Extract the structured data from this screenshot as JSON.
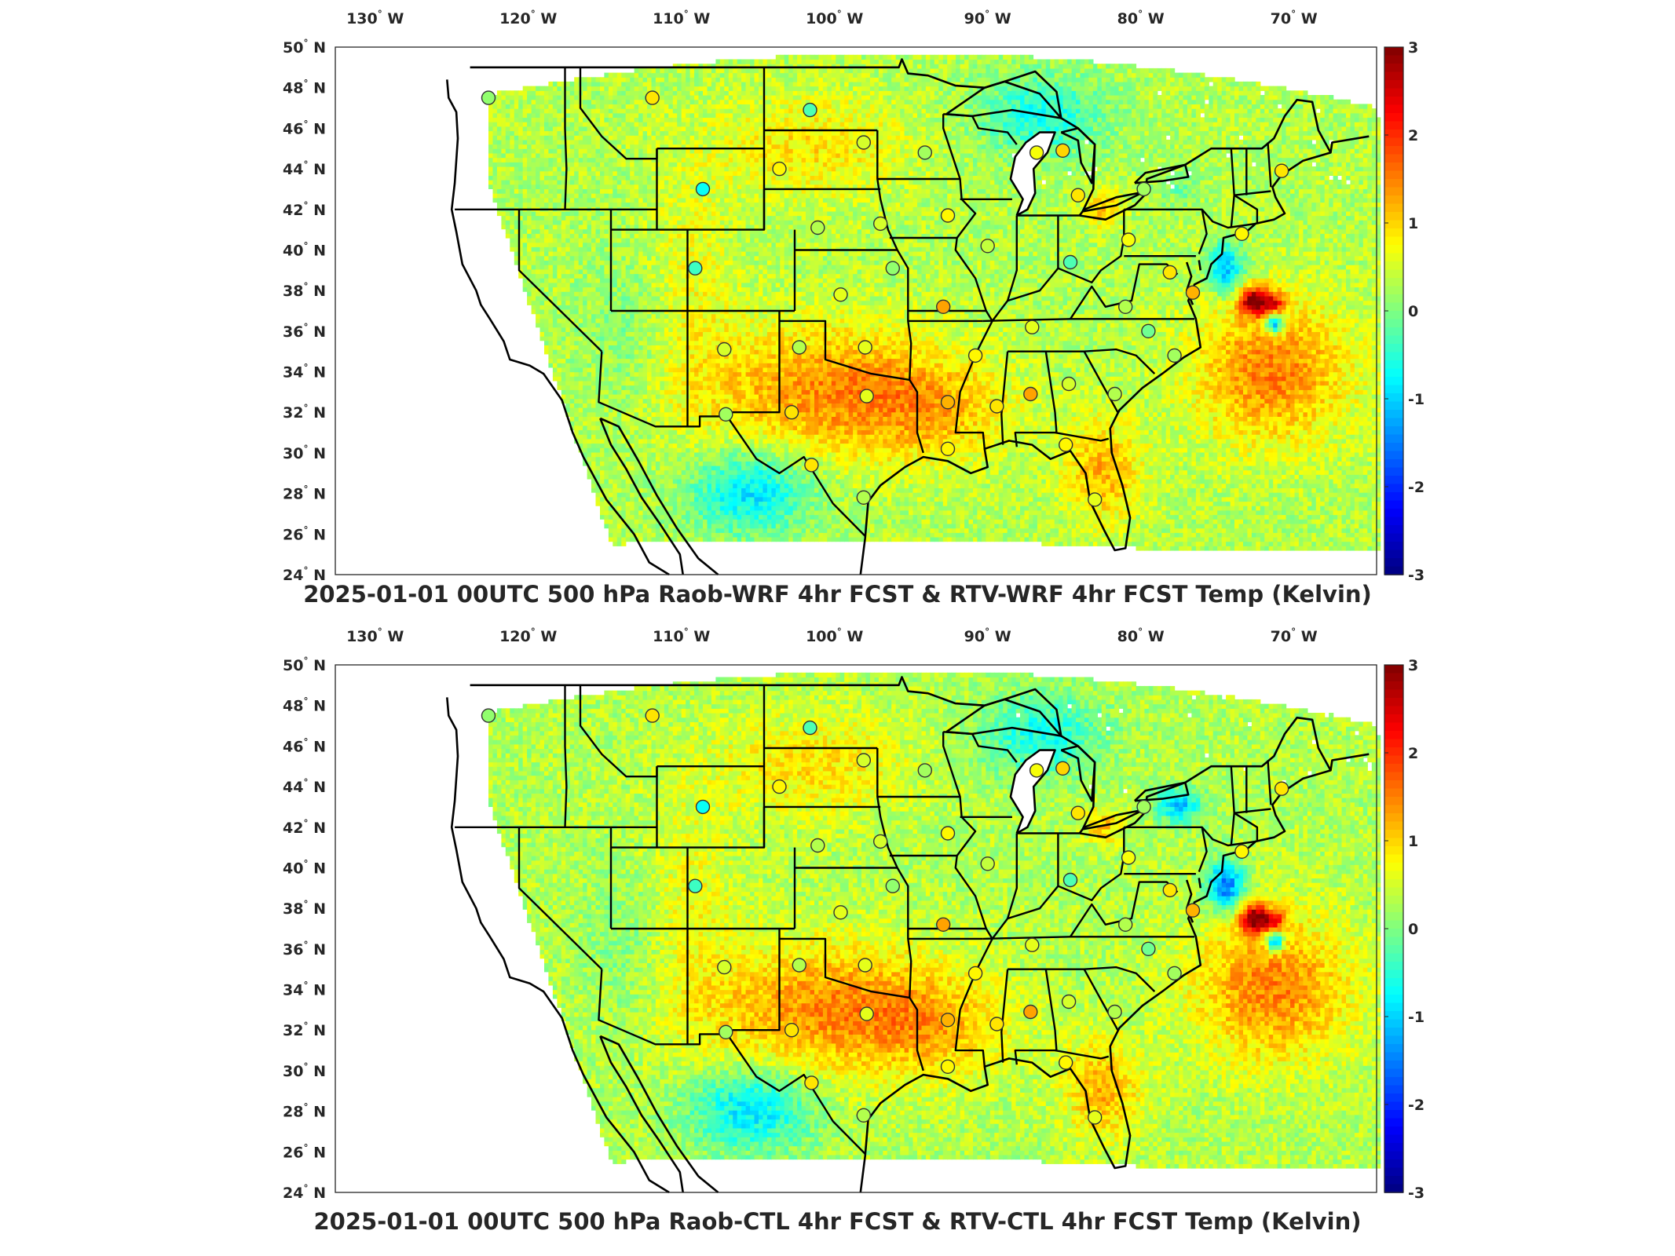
{
  "map": {
    "projection": "Lambert conformal conic",
    "lon_range": [
      -132,
      -64
    ],
    "lat_range": [
      24,
      50
    ],
    "lon_ticks": [
      "130",
      "120",
      "110",
      "100",
      "90",
      "80",
      "70"
    ],
    "lon_hemisphere": "W",
    "lat_ticks": [
      "24",
      "26",
      "28",
      "30",
      "32",
      "34",
      "36",
      "38",
      "40",
      "42",
      "44",
      "46",
      "48",
      "50"
    ],
    "lat_hemisphere": "N",
    "degree_symbol": "°"
  },
  "colorbar": {
    "colormap": "jet",
    "range": [
      -3,
      3
    ],
    "ticks": [
      "3",
      "2",
      "1",
      "0",
      "-1",
      "-2",
      "-3"
    ]
  },
  "panels": [
    {
      "title": "2025-01-01 00UTC 500 hPa Raob-WRF 4hr FCST & RTV-WRF 4hr FCST Temp (Kelvin)"
    },
    {
      "title": "2025-01-01 00UTC 500 hPa Raob-CTL 4hr FCST & RTV-CTL 4hr FCST Temp (Kelvin)"
    }
  ],
  "stations": [
    {
      "lon": -122.0,
      "lat": 47.5,
      "v1": 0.1,
      "v2": 0.1
    },
    {
      "lon": -111.3,
      "lat": 47.5,
      "v1": 0.9,
      "v2": 0.9
    },
    {
      "lon": -101.0,
      "lat": 46.9,
      "v1": -0.3,
      "v2": -0.3
    },
    {
      "lon": -97.5,
      "lat": 45.3,
      "v1": 0.5,
      "v2": 0.5
    },
    {
      "lon": -93.5,
      "lat": 44.8,
      "v1": 0.2,
      "v2": 0.2
    },
    {
      "lon": -103.0,
      "lat": 44.0,
      "v1": 0.8,
      "v2": 0.8
    },
    {
      "lon": -108.0,
      "lat": 43.0,
      "v1": -0.7,
      "v2": -0.7
    },
    {
      "lon": -100.5,
      "lat": 41.1,
      "v1": 0.3,
      "v2": 0.3
    },
    {
      "lon": -96.4,
      "lat": 41.3,
      "v1": 0.5,
      "v2": 0.5
    },
    {
      "lon": -108.5,
      "lat": 39.1,
      "v1": -0.4,
      "v2": -0.4
    },
    {
      "lon": -99.0,
      "lat": 37.8,
      "v1": 0.6,
      "v2": 0.6
    },
    {
      "lon": -95.6,
      "lat": 39.1,
      "v1": 0.1,
      "v2": 0.1
    },
    {
      "lon": -92.0,
      "lat": 41.7,
      "v1": 0.8,
      "v2": 0.8
    },
    {
      "lon": -89.4,
      "lat": 40.2,
      "v1": 0.4,
      "v2": 0.4
    },
    {
      "lon": -86.2,
      "lat": 44.8,
      "v1": 0.7,
      "v2": 0.7
    },
    {
      "lon": -84.5,
      "lat": 44.9,
      "v1": 1.0,
      "v2": 1.0
    },
    {
      "lon": -83.5,
      "lat": 42.7,
      "v1": 0.9,
      "v2": 0.9
    },
    {
      "lon": -79.2,
      "lat": 43.0,
      "v1": 0.2,
      "v2": 0.2
    },
    {
      "lon": -84.0,
      "lat": 39.4,
      "v1": -0.3,
      "v2": -0.3
    },
    {
      "lon": -80.2,
      "lat": 40.5,
      "v1": 0.7,
      "v2": 0.7
    },
    {
      "lon": -77.5,
      "lat": 38.9,
      "v1": 0.9,
      "v2": 0.9
    },
    {
      "lon": -76.0,
      "lat": 37.9,
      "v1": 1.2,
      "v2": 1.2
    },
    {
      "lon": -72.8,
      "lat": 40.8,
      "v1": 0.8,
      "v2": 0.8
    },
    {
      "lon": -70.2,
      "lat": 43.9,
      "v1": 0.9,
      "v2": 0.9
    },
    {
      "lon": -106.6,
      "lat": 35.1,
      "v1": 0.5,
      "v2": 0.5
    },
    {
      "lon": -101.7,
      "lat": 35.2,
      "v1": 0.3,
      "v2": 0.3
    },
    {
      "lon": -97.4,
      "lat": 35.2,
      "v1": 0.6,
      "v2": 0.6
    },
    {
      "lon": -92.3,
      "lat": 37.2,
      "v1": 1.3,
      "v2": 1.3
    },
    {
      "lon": -90.2,
      "lat": 34.8,
      "v1": 0.8,
      "v2": 0.8
    },
    {
      "lon": -86.5,
      "lat": 36.2,
      "v1": 0.6,
      "v2": 0.6
    },
    {
      "lon": -80.4,
      "lat": 37.2,
      "v1": 0.3,
      "v2": 0.3
    },
    {
      "lon": -78.9,
      "lat": 36.0,
      "v1": -0.1,
      "v2": -0.1
    },
    {
      "lon": -77.2,
      "lat": 34.8,
      "v1": 0.2,
      "v2": 0.2
    },
    {
      "lon": -106.5,
      "lat": 31.9,
      "v1": 0.2,
      "v2": 0.2
    },
    {
      "lon": -102.2,
      "lat": 32.0,
      "v1": 0.9,
      "v2": 0.9
    },
    {
      "lon": -97.3,
      "lat": 32.8,
      "v1": 0.6,
      "v2": 0.6
    },
    {
      "lon": -92.0,
      "lat": 32.5,
      "v1": 1.2,
      "v2": 1.2
    },
    {
      "lon": -88.8,
      "lat": 32.3,
      "v1": 0.9,
      "v2": 0.9
    },
    {
      "lon": -86.6,
      "lat": 32.9,
      "v1": 1.3,
      "v2": 1.3
    },
    {
      "lon": -84.1,
      "lat": 33.4,
      "v1": 0.5,
      "v2": 0.5
    },
    {
      "lon": -81.1,
      "lat": 32.9,
      "v1": 0.3,
      "v2": 0.3
    },
    {
      "lon": -100.9,
      "lat": 29.4,
      "v1": 0.9,
      "v2": 0.9
    },
    {
      "lon": -97.5,
      "lat": 27.8,
      "v1": 0.3,
      "v2": 0.3
    },
    {
      "lon": -92.0,
      "lat": 30.2,
      "v1": 0.8,
      "v2": 0.8
    },
    {
      "lon": -84.3,
      "lat": 30.4,
      "v1": 0.8,
      "v2": 0.8
    },
    {
      "lon": -82.4,
      "lat": 27.7,
      "v1": 0.6,
      "v2": 0.6
    }
  ]
}
